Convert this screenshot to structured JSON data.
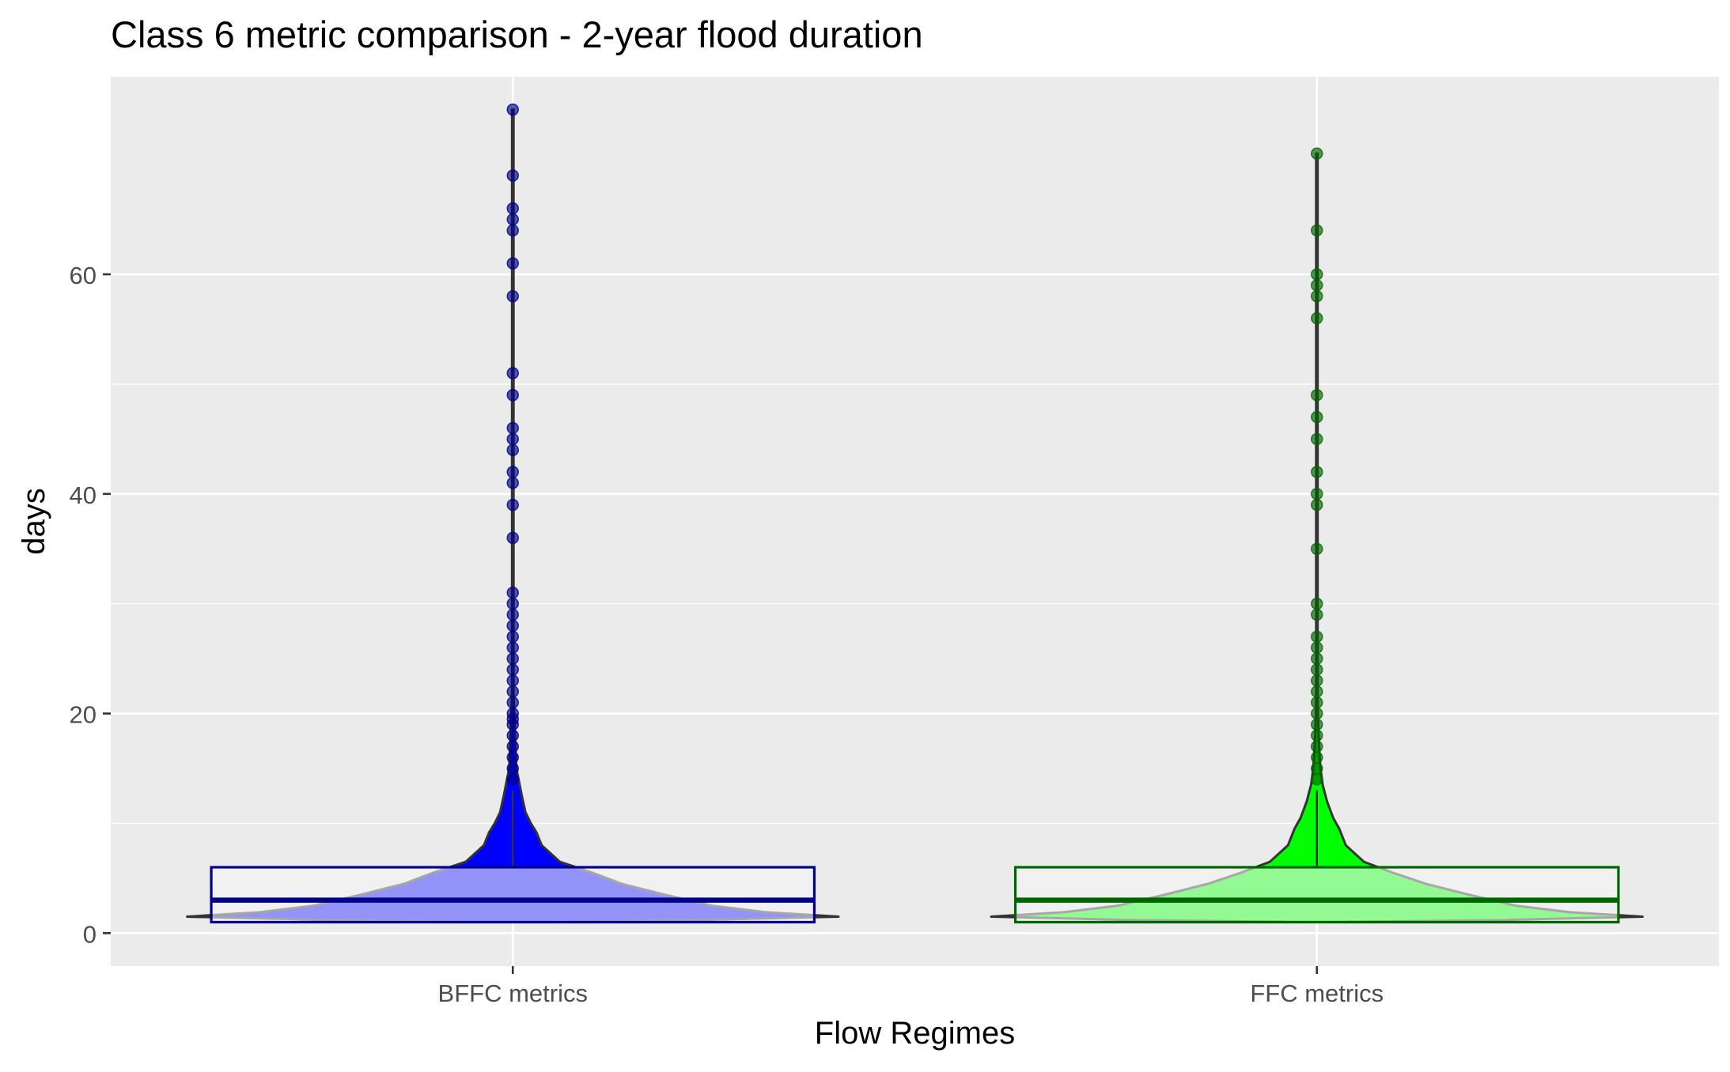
{
  "chart_data": {
    "type": "violin",
    "title": "Class 6 metric comparison - 2-year flood duration",
    "xlabel": "Flow Regimes",
    "ylabel": "days",
    "categories": [
      "BFFC metrics",
      "FFC metrics"
    ],
    "ylim": [
      -3,
      78
    ],
    "yticks": [
      0,
      20,
      40,
      60
    ],
    "grid": true,
    "legend": "none",
    "colors": {
      "panel_bg": "#EBEBEB",
      "grid": "#FFFFFF",
      "violin_outline": "#333333",
      "box_fill": "#F5F5F5"
    },
    "series": [
      {
        "category": "BFFC metrics",
        "fill": "#0000FF",
        "box_color": "#00008B",
        "point_color": "#00008B",
        "box": {
          "min": 1,
          "q1": 1,
          "median": 3,
          "q3": 6,
          "whisker_high": 13
        },
        "violin_profile": [
          [
            1,
            0.05
          ],
          [
            1.2,
            0.52
          ],
          [
            1.5,
            0.9
          ],
          [
            1.9,
            0.7
          ],
          [
            2.5,
            0.55
          ],
          [
            3.5,
            0.42
          ],
          [
            4.5,
            0.3
          ],
          [
            5.5,
            0.22
          ],
          [
            6.5,
            0.13
          ],
          [
            8,
            0.08
          ],
          [
            9.2,
            0.065
          ],
          [
            10,
            0.05
          ],
          [
            11,
            0.035
          ],
          [
            12.5,
            0.025
          ],
          [
            14,
            0.016
          ],
          [
            15,
            0.01
          ],
          [
            16.5,
            0.008
          ],
          [
            18,
            0.006
          ],
          [
            20,
            0.004
          ],
          [
            22,
            0.002
          ],
          [
            30,
            0.002
          ],
          [
            75,
            0.002
          ]
        ],
        "outliers": [
          14,
          15,
          16,
          17,
          18,
          19,
          19.5,
          20,
          21,
          22,
          23,
          24,
          25,
          26,
          27,
          28,
          29,
          30,
          31,
          36,
          39,
          41,
          42,
          44,
          45,
          46,
          49,
          51,
          58,
          61,
          64,
          65,
          66,
          69,
          75
        ]
      },
      {
        "category": "FFC metrics",
        "fill": "#00FF00",
        "box_color": "#006400",
        "point_color": "#006400",
        "box": {
          "min": 1,
          "q1": 1,
          "median": 3,
          "q3": 6,
          "whisker_high": 13
        },
        "violin_profile": [
          [
            1,
            0.05
          ],
          [
            1.2,
            0.52
          ],
          [
            1.5,
            0.9
          ],
          [
            1.9,
            0.7
          ],
          [
            2.5,
            0.55
          ],
          [
            3.5,
            0.42
          ],
          [
            4.5,
            0.3
          ],
          [
            5.5,
            0.21
          ],
          [
            6.5,
            0.13
          ],
          [
            8,
            0.08
          ],
          [
            9.5,
            0.062
          ],
          [
            10.5,
            0.045
          ],
          [
            12,
            0.028
          ],
          [
            13.5,
            0.016
          ],
          [
            15,
            0.01
          ],
          [
            16.5,
            0.007
          ],
          [
            18,
            0.005
          ],
          [
            20,
            0.003
          ],
          [
            22,
            0.002
          ],
          [
            30,
            0.002
          ],
          [
            71,
            0.002
          ]
        ],
        "outliers": [
          14,
          15,
          16,
          17,
          18,
          19,
          20,
          21,
          22,
          23,
          24,
          25,
          26,
          27,
          29,
          30,
          35,
          39,
          40,
          42,
          45,
          47,
          49,
          56,
          58,
          59,
          60,
          64,
          71
        ]
      }
    ]
  }
}
